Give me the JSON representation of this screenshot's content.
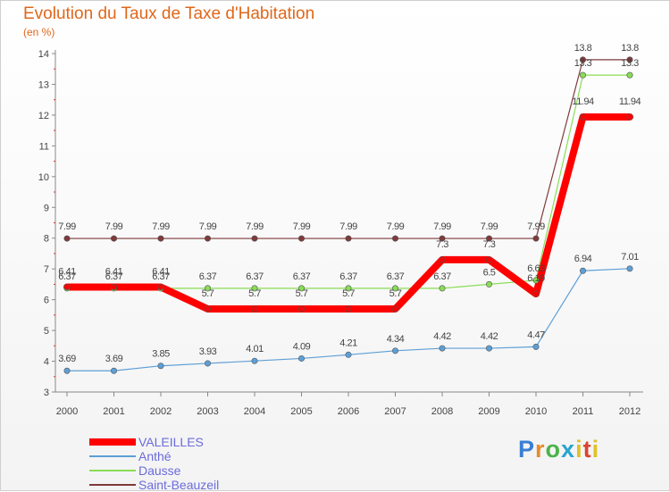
{
  "title": "Evolution du Taux de Taxe d'Habitation",
  "unit": "(en %)",
  "logo": "Proxiti",
  "colors": {
    "title": "#e0671b",
    "legend_text": "#6b6bdc"
  },
  "chart_data": {
    "type": "line",
    "title": "Evolution du Taux de Taxe d'Habitation",
    "ylabel": "(en %)",
    "xlabel": "",
    "categories": [
      "2000",
      "2001",
      "2002",
      "2003",
      "2004",
      "2005",
      "2006",
      "2007",
      "2008",
      "2009",
      "2010",
      "2011",
      "2012"
    ],
    "ylim": [
      3,
      14
    ],
    "yticks": [
      3,
      4,
      5,
      6,
      7,
      8,
      9,
      10,
      11,
      12,
      13,
      14
    ],
    "legend_position": "bottom-left",
    "series": [
      {
        "name": "VALEILLES",
        "color": "#ff0000",
        "values": [
          6.41,
          6.41,
          6.41,
          5.7,
          5.7,
          5.7,
          5.7,
          5.7,
          7.3,
          7.3,
          6.19,
          11.94,
          11.94
        ],
        "labels": [
          "6.41",
          "6.41",
          "6.41",
          "5.7",
          "5.7",
          "5.7",
          "5.7",
          "5.7",
          "7.3",
          "7.3",
          "6.19",
          "11.94",
          "11.94"
        ]
      },
      {
        "name": "Anthé",
        "color": "#5d9fd6",
        "values": [
          3.69,
          3.69,
          3.85,
          3.93,
          4.01,
          4.09,
          4.21,
          4.34,
          4.42,
          4.42,
          4.47,
          6.94,
          7.01
        ],
        "labels": [
          "3.69",
          "3.69",
          "3.85",
          "3.93",
          "4.01",
          "4.09",
          "4.21",
          "4.34",
          "4.42",
          "4.42",
          "4.47",
          "6.94",
          "7.01"
        ]
      },
      {
        "name": "Dausse",
        "color": "#88dd55",
        "values": [
          6.37,
          6.37,
          6.37,
          6.37,
          6.37,
          6.37,
          6.37,
          6.37,
          6.37,
          6.5,
          6.63,
          13.3,
          13.3
        ],
        "labels": [
          "6.37",
          "6.37",
          "6.37",
          "6.37",
          "6.37",
          "6.37",
          "6.37",
          "6.37",
          "6.37",
          "6.5",
          "6.63",
          "13.3",
          "13.3"
        ]
      },
      {
        "name": "Saint-Beauzeil",
        "color": "#7f3a3a",
        "values": [
          7.99,
          7.99,
          7.99,
          7.99,
          7.99,
          7.99,
          7.99,
          7.99,
          7.99,
          7.99,
          7.99,
          13.8,
          13.8
        ],
        "labels": [
          "7.99",
          "7.99",
          "7.99",
          "7.99",
          "7.99",
          "7.99",
          "7.99",
          "7.99",
          "7.99",
          "7.99",
          "7.99",
          "13.8",
          "13.8"
        ]
      }
    ]
  }
}
